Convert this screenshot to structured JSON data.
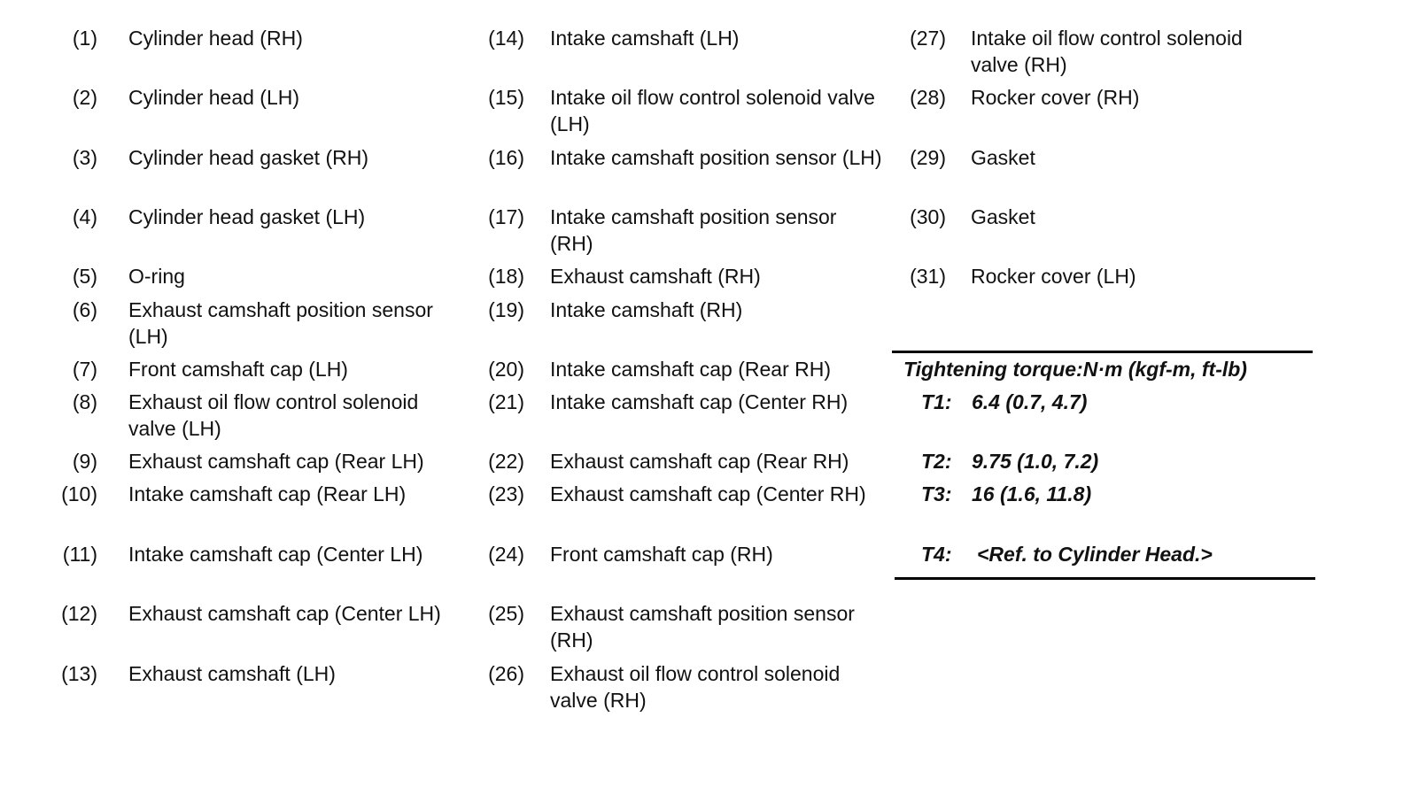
{
  "legend": {
    "columns": [
      [
        {
          "num": "(1)",
          "label": "Cylinder head (RH)"
        },
        {
          "num": "(2)",
          "label": "Cylinder head (LH)"
        },
        {
          "num": "(3)",
          "label": "Cylinder head gasket (RH)"
        },
        {
          "num": "(4)",
          "label": "Cylinder head gasket (LH)"
        },
        {
          "num": "(5)",
          "label": "O-ring"
        },
        {
          "num": "(6)",
          "label": "Exhaust camshaft position sensor (LH)"
        },
        {
          "num": "(7)",
          "label": "Front camshaft cap (LH)"
        },
        {
          "num": "(8)",
          "label": "Exhaust oil flow control solenoid valve (LH)"
        },
        {
          "num": "(9)",
          "label": "Exhaust camshaft cap (Rear LH)"
        },
        {
          "num": "(10)",
          "label": "Intake camshaft cap (Rear LH)"
        },
        {
          "num": "(11)",
          "label": "Intake camshaft cap (Center LH)"
        },
        {
          "num": "(12)",
          "label": "Exhaust camshaft cap (Center LH)"
        },
        {
          "num": "(13)",
          "label": "Exhaust camshaft (LH)"
        }
      ],
      [
        {
          "num": "(14)",
          "label": "Intake camshaft (LH)"
        },
        {
          "num": "(15)",
          "label": "Intake oil flow control solenoid valve (LH)"
        },
        {
          "num": "(16)",
          "label": "Intake camshaft position sensor (LH)"
        },
        {
          "num": "(17)",
          "label": "Intake camshaft position sensor (RH)"
        },
        {
          "num": "(18)",
          "label": "Exhaust camshaft (RH)"
        },
        {
          "num": "(19)",
          "label": "Intake camshaft (RH)"
        },
        {
          "num": "(20)",
          "label": "Intake camshaft cap (Rear RH)"
        },
        {
          "num": "(21)",
          "label": "Intake camshaft cap (Center RH)"
        },
        {
          "num": "(22)",
          "label": "Exhaust camshaft cap (Rear RH)"
        },
        {
          "num": "(23)",
          "label": "Exhaust camshaft cap (Center RH)"
        },
        {
          "num": "(24)",
          "label": "Front camshaft cap (RH)"
        },
        {
          "num": "(25)",
          "label": "Exhaust camshaft position sensor (RH)"
        },
        {
          "num": "(26)",
          "label": "Exhaust oil flow control solenoid valve (RH)"
        }
      ],
      [
        {
          "num": "(27)",
          "label": "Intake oil flow control solenoid valve (RH)"
        },
        {
          "num": "(28)",
          "label": "Rocker cover (RH)"
        },
        {
          "num": "(29)",
          "label": "Gasket"
        },
        {
          "num": "(30)",
          "label": "Gasket"
        },
        {
          "num": "(31)",
          "label": "Rocker cover (LH)"
        }
      ]
    ]
  },
  "torque": {
    "title": "Tightening torque:N·m (kgf-m, ft-lb)",
    "rows": [
      {
        "label": "T1:",
        "value": "6.4 (0.7, 4.7)"
      },
      {
        "label": "T2:",
        "value": "9.75 (1.0, 7.2)"
      },
      {
        "label": "T3:",
        "value": "16 (1.6, 11.8)"
      },
      {
        "label": "T4:",
        "value": "<Ref. to Cylinder Head.>"
      }
    ]
  }
}
